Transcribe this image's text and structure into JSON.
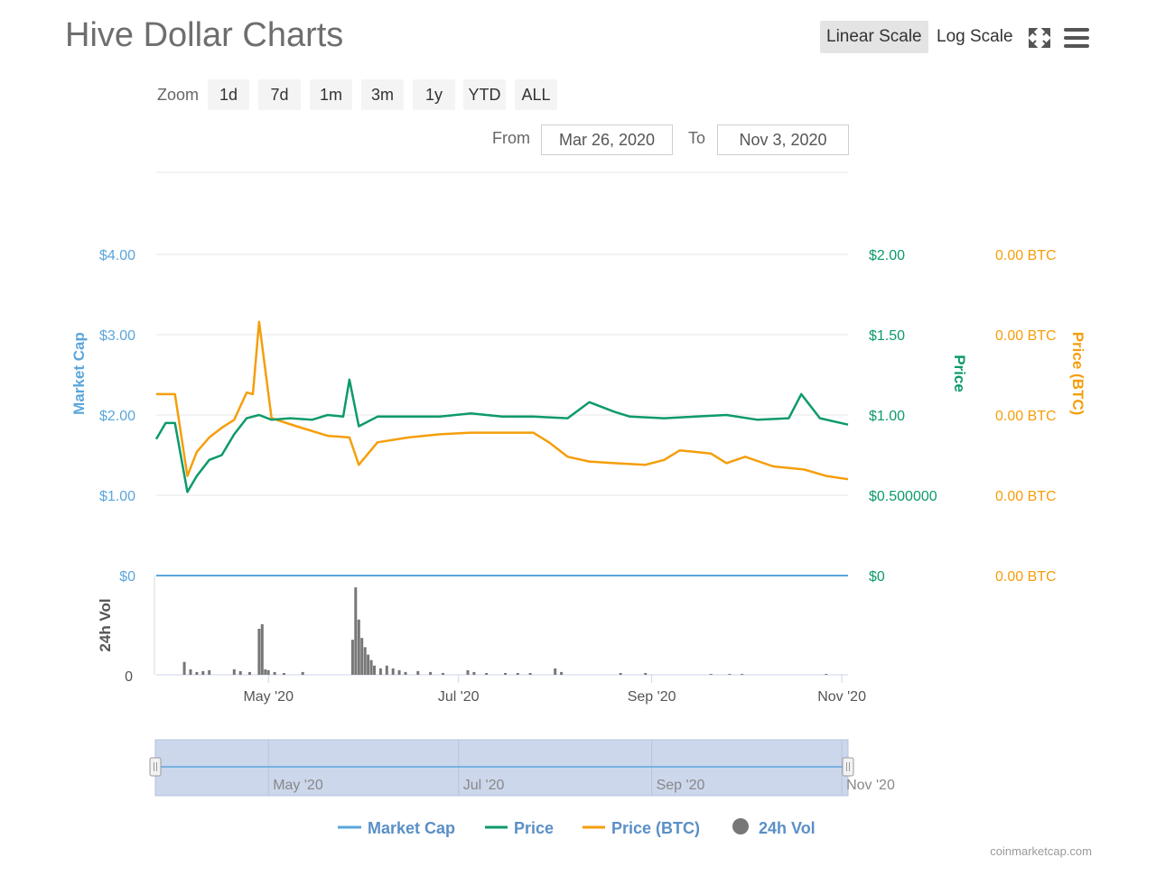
{
  "header": {
    "title": "Hive Dollar Charts",
    "linear_scale_label": "Linear Scale",
    "log_scale_label": "Log Scale",
    "fullscreen_icon": "fullscreen-icon",
    "menu_icon": "hamburger-menu-icon"
  },
  "zoom": {
    "label": "Zoom",
    "buttons": [
      "1d",
      "7d",
      "1m",
      "3m",
      "1y",
      "YTD",
      "ALL"
    ]
  },
  "range": {
    "from_label": "From",
    "from_value": "Mar 26, 2020",
    "to_label": "To",
    "to_value": "Nov 3, 2020"
  },
  "colors": {
    "market_cap": "#5aa6dc",
    "price": "#0d9a6b",
    "price_btc": "#f59e0b",
    "volume": "#777777",
    "navigator_fill": "#ccd7ec"
  },
  "credit": "coinmarketcap.com",
  "chart_data": {
    "type": "line",
    "title": "Hive Dollar Charts",
    "x_range": [
      "2020-03-26",
      "2020-11-03"
    ],
    "x_ticks": [
      "May '20",
      "Jul '20",
      "Sep '20",
      "Nov '20"
    ],
    "navigator_ticks": [
      "May '20",
      "Jul '20",
      "Sep '20",
      "Nov '20"
    ],
    "axes": {
      "market_cap": {
        "label": "Market Cap",
        "ticks": [
          "$4.00",
          "$3.00",
          "$2.00",
          "$1.00",
          "$0"
        ],
        "ylim": [
          0,
          4
        ]
      },
      "price": {
        "label": "Price",
        "ticks": [
          "$2.00",
          "$1.50",
          "$1.00",
          "$0.500000",
          "$0"
        ],
        "ylim": [
          0,
          2
        ]
      },
      "price_btc": {
        "label": "Price (BTC)",
        "ticks": [
          "0.00 BTC",
          "0.00 BTC",
          "0.00 BTC",
          "0.00 BTC",
          "0.00 BTC"
        ]
      },
      "volume": {
        "label": "24h Vol",
        "ticks": [
          "0"
        ]
      }
    },
    "legend": {
      "position": "bottom",
      "items": [
        "Market Cap",
        "Price",
        "Price (BTC)",
        "24h Vol"
      ]
    },
    "series": [
      {
        "name": "Market Cap",
        "x": [
          "2020-03-26",
          "2020-11-03"
        ],
        "values": [
          0,
          0
        ]
      },
      {
        "name": "Price",
        "x": [
          "2020-03-26",
          "2020-03-29",
          "2020-04-01",
          "2020-04-05",
          "2020-04-08",
          "2020-04-12",
          "2020-04-16",
          "2020-04-20",
          "2020-04-24",
          "2020-04-28",
          "2020-05-02",
          "2020-05-08",
          "2020-05-15",
          "2020-05-20",
          "2020-05-25",
          "2020-05-27",
          "2020-05-30",
          "2020-06-05",
          "2020-06-15",
          "2020-06-25",
          "2020-07-05",
          "2020-07-15",
          "2020-07-25",
          "2020-08-05",
          "2020-08-12",
          "2020-08-20",
          "2020-08-25",
          "2020-09-05",
          "2020-09-15",
          "2020-09-25",
          "2020-10-05",
          "2020-10-15",
          "2020-10-19",
          "2020-10-25",
          "2020-11-03"
        ],
        "values": [
          0.85,
          0.95,
          0.95,
          0.52,
          0.62,
          0.72,
          0.75,
          0.88,
          0.98,
          1.0,
          0.97,
          0.98,
          0.97,
          1.0,
          0.99,
          1.22,
          0.93,
          0.99,
          0.99,
          0.99,
          1.01,
          0.99,
          0.99,
          0.98,
          1.08,
          1.02,
          0.99,
          0.98,
          0.99,
          1.0,
          0.97,
          0.98,
          1.13,
          0.98,
          0.94
        ]
      },
      {
        "name": "Price (BTC)",
        "x": [
          "2020-03-26",
          "2020-03-29",
          "2020-04-01",
          "2020-04-05",
          "2020-04-08",
          "2020-04-12",
          "2020-04-16",
          "2020-04-20",
          "2020-04-24",
          "2020-04-26",
          "2020-04-28",
          "2020-05-02",
          "2020-05-10",
          "2020-05-20",
          "2020-05-27",
          "2020-05-30",
          "2020-06-05",
          "2020-06-15",
          "2020-06-25",
          "2020-07-05",
          "2020-07-15",
          "2020-07-25",
          "2020-07-30",
          "2020-08-05",
          "2020-08-12",
          "2020-08-20",
          "2020-08-30",
          "2020-09-05",
          "2020-09-10",
          "2020-09-20",
          "2020-09-25",
          "2020-10-01",
          "2020-10-10",
          "2020-10-20",
          "2020-10-27",
          "2020-11-03"
        ],
        "values": [
          1.13,
          1.13,
          1.13,
          0.62,
          0.77,
          0.86,
          0.92,
          0.97,
          1.14,
          1.13,
          1.58,
          0.98,
          0.93,
          0.87,
          0.86,
          0.69,
          0.83,
          0.86,
          0.88,
          0.89,
          0.89,
          0.89,
          0.83,
          0.74,
          0.71,
          0.7,
          0.69,
          0.72,
          0.78,
          0.76,
          0.7,
          0.74,
          0.68,
          0.66,
          0.62,
          0.6
        ]
      },
      {
        "name": "24h Vol",
        "x": [
          "2020-04-04",
          "2020-04-06",
          "2020-04-08",
          "2020-04-10",
          "2020-04-12",
          "2020-04-20",
          "2020-04-22",
          "2020-04-25",
          "2020-04-28",
          "2020-04-29",
          "2020-04-30",
          "2020-05-01",
          "2020-05-03",
          "2020-05-06",
          "2020-05-12",
          "2020-05-28",
          "2020-05-29",
          "2020-05-30",
          "2020-05-31",
          "2020-06-01",
          "2020-06-02",
          "2020-06-03",
          "2020-06-04",
          "2020-06-06",
          "2020-06-08",
          "2020-06-10",
          "2020-06-12",
          "2020-06-14",
          "2020-06-18",
          "2020-06-22",
          "2020-06-26",
          "2020-07-04",
          "2020-07-06",
          "2020-07-10",
          "2020-07-16",
          "2020-07-20",
          "2020-07-24",
          "2020-08-01",
          "2020-08-03",
          "2020-08-22",
          "2020-08-30",
          "2020-09-20",
          "2020-09-26",
          "2020-09-30",
          "2020-10-27"
        ],
        "values": [
          14,
          6,
          3,
          4,
          5,
          6,
          4,
          3,
          50,
          55,
          6,
          5,
          3,
          2,
          3,
          38,
          95,
          60,
          40,
          30,
          22,
          16,
          10,
          7,
          10,
          7,
          5,
          3,
          4,
          3,
          2,
          5,
          3,
          2,
          2,
          2,
          2,
          7,
          3,
          2,
          2,
          1,
          1,
          1,
          1
        ]
      }
    ]
  }
}
